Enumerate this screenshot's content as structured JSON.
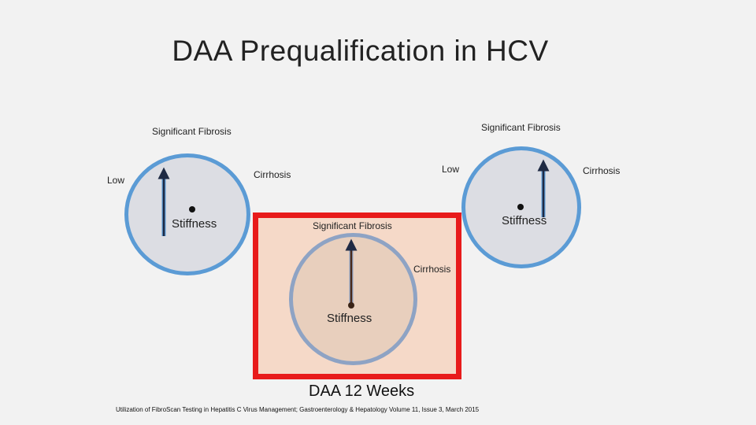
{
  "slide": {
    "title": "DAA Prequalification in HCV",
    "caption": "DAA 12 Weeks",
    "source": "Utilization of FibroScan Testing in Hepatitis C Virus Management; Gastroenterology & Hepatology Volume 11, Issue 3, March 2015"
  },
  "gauge_left": {
    "top_label": "Significant Fibrosis",
    "left_label": "Low",
    "right_label": "Cirrhosis",
    "center_label": "Stiffness"
  },
  "gauge_right": {
    "top_label": "Significant Fibrosis",
    "left_label": "Low",
    "right_label": "Cirrhosis",
    "center_label": "Stiffness"
  },
  "gauge_center": {
    "top_label": "Significant Fibrosis",
    "right_label": "Cirrhosis",
    "center_label": "Stiffness"
  },
  "colors": {
    "highlight_frame": "#e81b1b",
    "gauge_ring": "#5b9bd5",
    "needle": "#1f2a44"
  }
}
